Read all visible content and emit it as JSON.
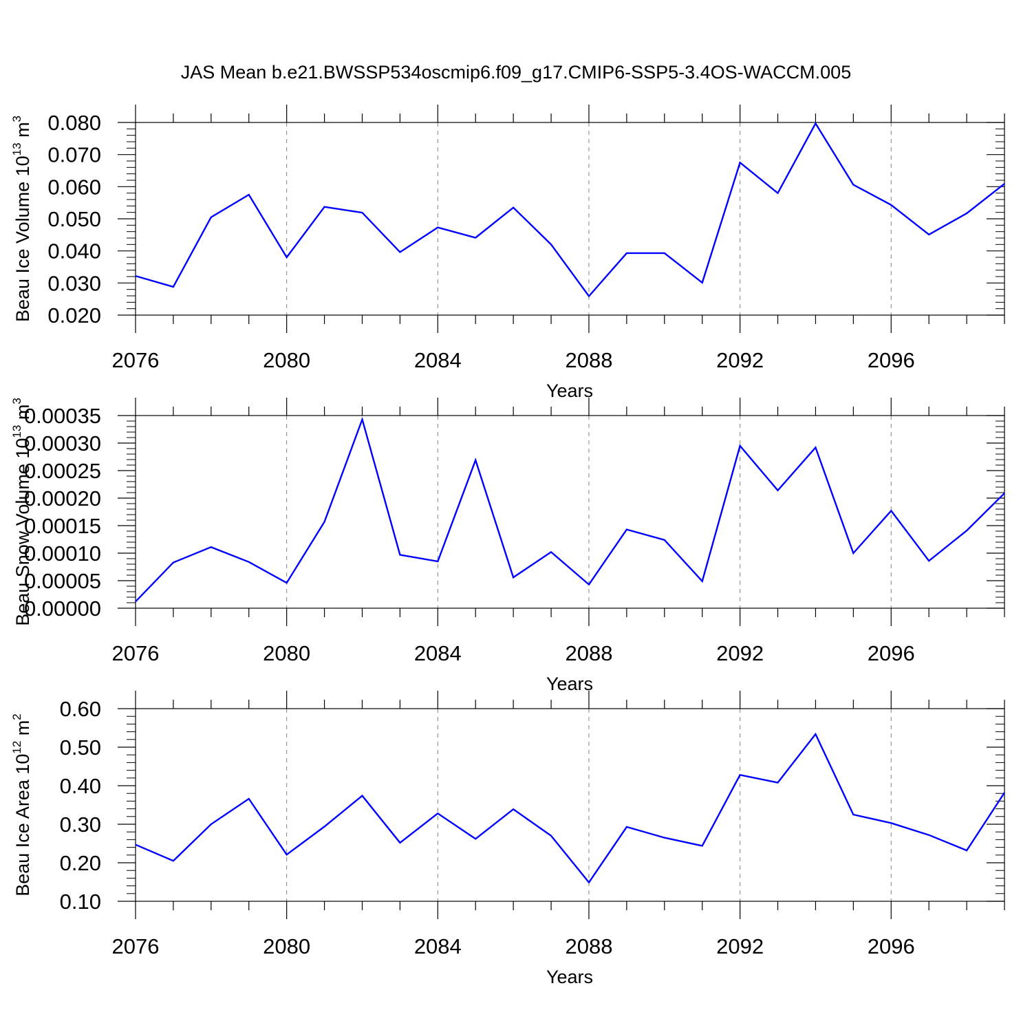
{
  "title": "JAS Mean b.e21.BWSSP534oscmip6.f09_g17.CMIP6-SSP5-3.4OS-WACCM.005",
  "colors": {
    "line": "#0000ff",
    "axis": "#000000",
    "grid": "#808080"
  },
  "chart_data": [
    {
      "type": "line",
      "ylabel": {
        "prefix": "Beau Ice Volume 10",
        "exp": "13",
        "unit": " m",
        "unit_exp": "3"
      },
      "xlabel": "Years",
      "xlim": [
        2076,
        2099
      ],
      "ylim": [
        0.02,
        0.08
      ],
      "xticks": [
        "2076",
        "2080",
        "2084",
        "2088",
        "2092",
        "2096"
      ],
      "yticks": [
        "0.020",
        "0.030",
        "0.040",
        "0.050",
        "0.060",
        "0.070",
        "0.080"
      ],
      "series": [
        {
          "name": "Beau Ice Volume",
          "x": [
            2076,
            2077,
            2078,
            2079,
            2080,
            2081,
            2082,
            2083,
            2084,
            2085,
            2086,
            2087,
            2088,
            2089,
            2090,
            2091,
            2092,
            2093,
            2094,
            2095,
            2096,
            2097,
            2098,
            2099
          ],
          "values": [
            0.0322,
            0.0288,
            0.0505,
            0.0575,
            0.038,
            0.0537,
            0.0519,
            0.0396,
            0.0473,
            0.0441,
            0.0535,
            0.042,
            0.0259,
            0.0393,
            0.0393,
            0.0301,
            0.0675,
            0.058,
            0.0797,
            0.0606,
            0.0543,
            0.0451,
            0.0517,
            0.0609
          ]
        }
      ]
    },
    {
      "type": "line",
      "ylabel": {
        "prefix": "Beau Snow Volume 10",
        "exp": "13",
        "unit": " m",
        "unit_exp": "3"
      },
      "xlabel": "Years",
      "xlim": [
        2076,
        2099
      ],
      "ylim": [
        0.0,
        0.00035
      ],
      "xticks": [
        "2076",
        "2080",
        "2084",
        "2088",
        "2092",
        "2096"
      ],
      "yticks": [
        "0.00000",
        "0.00005",
        "0.00010",
        "0.00015",
        "0.00020",
        "0.00025",
        "0.00030",
        "0.00035"
      ],
      "series": [
        {
          "name": "Beau Snow Volume",
          "x": [
            2076,
            2077,
            2078,
            2079,
            2080,
            2081,
            2082,
            2083,
            2084,
            2085,
            2086,
            2087,
            2088,
            2089,
            2090,
            2091,
            2092,
            2093,
            2094,
            2095,
            2096,
            2097,
            2098,
            2099
          ],
          "values": [
            1.2e-05,
            8.3e-05,
            0.000111,
            8.4e-05,
            4.6e-05,
            0.000157,
            0.000343,
            9.7e-05,
            8.5e-05,
            0.000269,
            5.6e-05,
            0.000102,
            4.3e-05,
            0.000143,
            0.000124,
            4.9e-05,
            0.000295,
            0.000214,
            0.000292,
            0.0001,
            0.000177,
            8.6e-05,
            0.000141,
            0.000209
          ]
        }
      ]
    },
    {
      "type": "line",
      "ylabel": {
        "prefix": "Beau Ice Area 10",
        "exp": "12",
        "unit": " m",
        "unit_exp": "2"
      },
      "xlabel": "Years",
      "xlim": [
        2076,
        2099
      ],
      "ylim": [
        0.1,
        0.6
      ],
      "xticks": [
        "2076",
        "2080",
        "2084",
        "2088",
        "2092",
        "2096"
      ],
      "yticks": [
        "0.10",
        "0.20",
        "0.30",
        "0.40",
        "0.50",
        "0.60"
      ],
      "series": [
        {
          "name": "Beau Ice Area",
          "x": [
            2076,
            2077,
            2078,
            2079,
            2080,
            2081,
            2082,
            2083,
            2084,
            2085,
            2086,
            2087,
            2088,
            2089,
            2090,
            2091,
            2092,
            2093,
            2094,
            2095,
            2096,
            2097,
            2098,
            2099
          ],
          "values": [
            0.247,
            0.205,
            0.3,
            0.366,
            0.221,
            0.294,
            0.374,
            0.252,
            0.328,
            0.262,
            0.339,
            0.27,
            0.149,
            0.293,
            0.265,
            0.244,
            0.428,
            0.408,
            0.534,
            0.325,
            0.303,
            0.272,
            0.232,
            0.382
          ]
        }
      ]
    }
  ]
}
